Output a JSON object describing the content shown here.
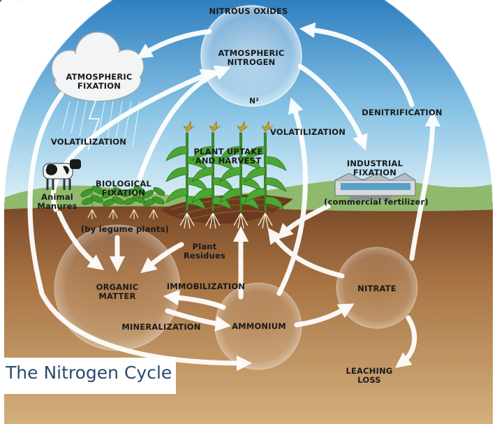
{
  "title": "The Nitrogen Cycle",
  "labels": {
    "nitrous_oxides": "NITROUS OXIDES",
    "atmospheric_nitrogen": "ATMOSPHERIC\nNITROGEN",
    "n2": "N²",
    "atmospheric_fixation": "ATMOSPHERIC\nFIXATION",
    "volatilization_left": "VOLATILIZATION",
    "volatilization_right": "VOLATILIZATION",
    "denitrification": "DENITRIFICATION",
    "plant_uptake": "PLANT UPTAKE\nAND HARVEST",
    "industrial_fixation": "INDUSTRIAL\nFIXATION",
    "commercial_fertilizer": "(commercial fertilizer)",
    "biological_fixation": "BIOLOGICAL\nFIXATION",
    "legume_plants": "(by legume plants)",
    "animal_manures": "Animal\nManures",
    "plant_residues": "Plant\nResidues",
    "organic_matter": "ORGANIC\nMATTER",
    "immobilization": "IMMOBILIZATION",
    "mineralization": "MINERALIZATION",
    "ammonium": "AMMONIUM",
    "nitrate": "NITRATE",
    "leaching_loss": "LEACHING\nLOSS"
  },
  "colors": {
    "sky_top": "#2f7fc0",
    "sky_bottom": "#d7ecf6",
    "soil_top": "#8a5a34",
    "soil_bottom": "#c9a574",
    "water": "#7fc6e8",
    "hills": "#8fb96d",
    "arrow": "#ffffff",
    "caption": "#2c4a6e"
  }
}
